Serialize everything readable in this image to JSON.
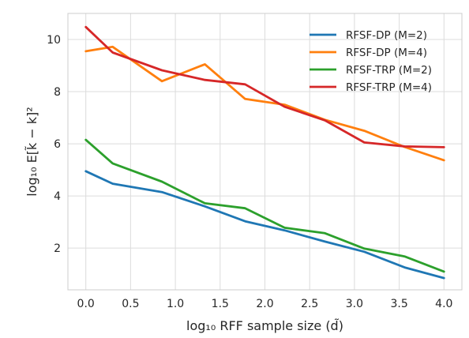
{
  "chart_data": {
    "type": "line",
    "xlabel": "log₁₀ RFF sample size (d̃)",
    "ylabel": "log₁₀ E[k̃ − k]²",
    "xlim": [
      -0.2,
      4.2
    ],
    "ylim": [
      0.4,
      11.0
    ],
    "xticks": [
      0.0,
      0.5,
      1.0,
      1.5,
      2.0,
      2.5,
      3.0,
      3.5,
      4.0
    ],
    "xtick_labels": [
      "0.0",
      "0.5",
      "1.0",
      "1.5",
      "2.0",
      "2.5",
      "3.0",
      "3.5",
      "4.0"
    ],
    "yticks": [
      2,
      4,
      6,
      8,
      10
    ],
    "ytick_labels": [
      "2",
      "4",
      "6",
      "8",
      "10"
    ],
    "grid": true,
    "legend_position": "top-right",
    "series": [
      {
        "name": "RFSF-DP (M=2)",
        "color": "#1f77b4",
        "x": [
          0.0,
          0.3,
          0.85,
          1.33,
          1.78,
          2.22,
          2.67,
          3.11,
          3.56,
          4.0
        ],
        "y": [
          4.95,
          4.47,
          4.15,
          3.6,
          3.03,
          2.68,
          2.25,
          1.86,
          1.26,
          0.85
        ]
      },
      {
        "name": "RFSF-DP (M=4)",
        "color": "#ff7f0e",
        "x": [
          0.0,
          0.3,
          0.85,
          1.33,
          1.78,
          2.22,
          2.67,
          3.11,
          3.56,
          4.0
        ],
        "y": [
          9.55,
          9.72,
          8.4,
          9.05,
          7.72,
          7.5,
          6.92,
          6.5,
          5.88,
          5.37
        ]
      },
      {
        "name": "RFSF-TRP (M=2)",
        "color": "#2ca02c",
        "x": [
          0.0,
          0.3,
          0.85,
          1.33,
          1.78,
          2.22,
          2.67,
          3.11,
          3.56,
          4.0
        ],
        "y": [
          6.15,
          5.25,
          4.55,
          3.72,
          3.53,
          2.78,
          2.57,
          1.98,
          1.68,
          1.1
        ]
      },
      {
        "name": "RFSF-TRP (M=4)",
        "color": "#d62728",
        "x": [
          0.0,
          0.3,
          0.85,
          1.33,
          1.78,
          2.22,
          2.67,
          3.11,
          3.56,
          4.0
        ],
        "y": [
          10.48,
          9.5,
          8.82,
          8.45,
          8.28,
          7.42,
          6.9,
          6.05,
          5.9,
          5.87
        ]
      }
    ]
  }
}
